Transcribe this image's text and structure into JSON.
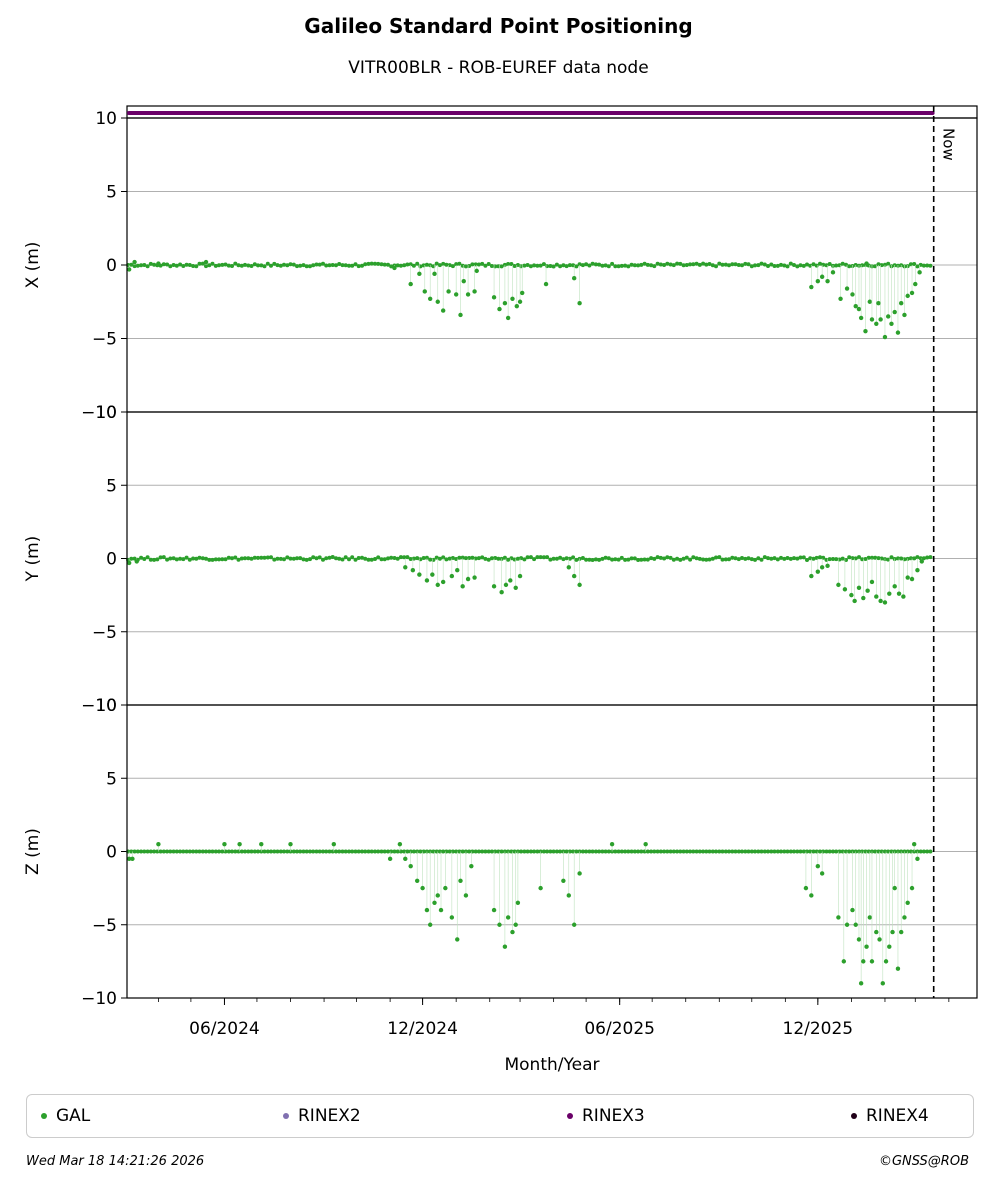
{
  "header": {
    "title": "Galileo Standard Point Positioning",
    "subtitle": "VITR00BLR - ROB-EUREF data node"
  },
  "legend": [
    {
      "label": "GAL",
      "color": "#2ca02c"
    },
    {
      "label": "RINEX2",
      "color": "#8070b0"
    },
    {
      "label": "RINEX3",
      "color": "#6a0068"
    },
    {
      "label": "RINEX4",
      "color": "#200018"
    }
  ],
  "footer": {
    "timestamp": "Wed Mar 18 14:21:26 2026",
    "credit": "©GNSS@ROB"
  },
  "chart_data": {
    "type": "scatter",
    "xlabel": "Month/Year",
    "x_range": [
      "2024-03-03",
      "2026-04-27"
    ],
    "x_ticks": [
      "2024-06-01",
      "2024-12-01",
      "2025-06-01",
      "2025-12-01"
    ],
    "x_tick_labels": [
      "06/2024",
      "12/2024",
      "06/2025",
      "12/2025"
    ],
    "now_marker": {
      "date": "2026-03-18",
      "label": "Now"
    },
    "rinex3_bar": {
      "start": "2024-03-03",
      "end": "2026-03-17",
      "color": "#6a0068"
    },
    "grid": "horizontal",
    "panels": [
      {
        "ylabel": "X (m)",
        "ylim": [
          -10,
          10
        ],
        "yticks": [
          -10,
          -5,
          0,
          5,
          10
        ],
        "ytick_labels": [
          "−10",
          "−5",
          "0",
          "5",
          "10"
        ],
        "series": [
          {
            "name": "GAL",
            "color": "#2ca02c",
            "baseline_noise": 0.1,
            "points": [
              [
                "2024-03-05",
                -0.3
              ],
              [
                "2024-03-10",
                0.2
              ],
              [
                "2024-04-01",
                0.1
              ],
              [
                "2024-05-15",
                0.2
              ],
              [
                "2024-11-05",
                -0.2
              ],
              [
                "2024-11-20",
                -1.3
              ],
              [
                "2024-11-28",
                -0.6
              ],
              [
                "2024-12-03",
                -1.8
              ],
              [
                "2024-12-08",
                -2.3
              ],
              [
                "2024-12-12",
                -0.6
              ],
              [
                "2024-12-15",
                -2.5
              ],
              [
                "2024-12-20",
                -3.1
              ],
              [
                "2024-12-25",
                -1.8
              ],
              [
                "2025-01-01",
                -2.0
              ],
              [
                "2025-01-05",
                -3.4
              ],
              [
                "2025-01-08",
                -1.1
              ],
              [
                "2025-01-12",
                -2.0
              ],
              [
                "2025-01-18",
                -1.8
              ],
              [
                "2025-01-20",
                -0.4
              ],
              [
                "2025-02-05",
                -2.2
              ],
              [
                "2025-02-10",
                -3.0
              ],
              [
                "2025-02-15",
                -2.6
              ],
              [
                "2025-02-18",
                -3.6
              ],
              [
                "2025-02-22",
                -2.3
              ],
              [
                "2025-02-26",
                -2.8
              ],
              [
                "2025-03-01",
                -2.5
              ],
              [
                "2025-03-03",
                -1.9
              ],
              [
                "2025-03-25",
                -1.3
              ],
              [
                "2025-04-20",
                -0.9
              ],
              [
                "2025-04-25",
                -2.6
              ],
              [
                "2025-11-25",
                -1.5
              ],
              [
                "2025-12-01",
                -1.1
              ],
              [
                "2025-12-05",
                -0.8
              ],
              [
                "2025-12-10",
                -1.1
              ],
              [
                "2025-12-15",
                -0.5
              ],
              [
                "2025-12-22",
                -2.3
              ],
              [
                "2025-12-28",
                -1.6
              ],
              [
                "2026-01-02",
                -2.0
              ],
              [
                "2026-01-05",
                -2.8
              ],
              [
                "2026-01-08",
                -3.0
              ],
              [
                "2026-01-10",
                -3.6
              ],
              [
                "2026-01-14",
                -4.5
              ],
              [
                "2026-01-18",
                -2.5
              ],
              [
                "2026-01-20",
                -3.7
              ],
              [
                "2026-01-24",
                -4.0
              ],
              [
                "2026-01-26",
                -2.6
              ],
              [
                "2026-01-28",
                -3.7
              ],
              [
                "2026-02-01",
                -4.9
              ],
              [
                "2026-02-04",
                -3.5
              ],
              [
                "2026-02-07",
                -4.0
              ],
              [
                "2026-02-10",
                -3.2
              ],
              [
                "2026-02-13",
                -4.6
              ],
              [
                "2026-02-16",
                -2.6
              ],
              [
                "2026-02-19",
                -3.4
              ],
              [
                "2026-02-22",
                -2.1
              ],
              [
                "2026-02-26",
                -1.9
              ],
              [
                "2026-03-01",
                -1.3
              ],
              [
                "2026-03-05",
                -0.5
              ],
              [
                "2026-01-15",
                0.1
              ]
            ]
          }
        ]
      },
      {
        "ylabel": "Y (m)",
        "ylim": [
          -10,
          10
        ],
        "yticks": [
          -10,
          -5,
          0,
          5,
          10
        ],
        "ytick_labels": [
          "−10",
          "−5",
          "0",
          "5",
          "10"
        ],
        "series": [
          {
            "name": "GAL",
            "color": "#2ca02c",
            "baseline_noise": 0.1,
            "points": [
              [
                "2024-03-05",
                -0.3
              ],
              [
                "2024-03-12",
                -0.2
              ],
              [
                "2024-11-15",
                -0.6
              ],
              [
                "2024-11-22",
                -0.8
              ],
              [
                "2024-11-28",
                -1.1
              ],
              [
                "2024-12-05",
                -1.5
              ],
              [
                "2024-12-10",
                -1.1
              ],
              [
                "2024-12-15",
                -1.8
              ],
              [
                "2024-12-20",
                -1.6
              ],
              [
                "2024-12-28",
                -1.2
              ],
              [
                "2025-01-02",
                -0.8
              ],
              [
                "2025-01-07",
                -1.9
              ],
              [
                "2025-01-12",
                -1.4
              ],
              [
                "2025-01-18",
                -1.3
              ],
              [
                "2025-02-05",
                -1.9
              ],
              [
                "2025-02-12",
                -2.3
              ],
              [
                "2025-02-16",
                -1.8
              ],
              [
                "2025-02-20",
                -1.5
              ],
              [
                "2025-02-25",
                -2.0
              ],
              [
                "2025-03-01",
                -1.2
              ],
              [
                "2025-04-15",
                -0.6
              ],
              [
                "2025-04-20",
                -1.2
              ],
              [
                "2025-04-25",
                -1.8
              ],
              [
                "2025-11-25",
                -1.2
              ],
              [
                "2025-12-01",
                -0.9
              ],
              [
                "2025-12-05",
                -0.6
              ],
              [
                "2025-12-10",
                -0.5
              ],
              [
                "2025-12-20",
                -1.8
              ],
              [
                "2025-12-26",
                -2.1
              ],
              [
                "2026-01-01",
                -2.5
              ],
              [
                "2026-01-04",
                -2.9
              ],
              [
                "2026-01-08",
                -2.0
              ],
              [
                "2026-01-12",
                -2.7
              ],
              [
                "2026-01-16",
                -2.2
              ],
              [
                "2026-01-20",
                -1.6
              ],
              [
                "2026-01-24",
                -2.6
              ],
              [
                "2026-01-28",
                -2.9
              ],
              [
                "2026-02-01",
                -3.0
              ],
              [
                "2026-02-05",
                -2.4
              ],
              [
                "2026-02-10",
                -1.9
              ],
              [
                "2026-02-14",
                -2.4
              ],
              [
                "2026-02-18",
                -2.6
              ],
              [
                "2026-02-22",
                -1.3
              ],
              [
                "2026-02-26",
                -1.4
              ],
              [
                "2026-03-03",
                -0.8
              ],
              [
                "2026-03-07",
                -0.2
              ]
            ]
          }
        ]
      },
      {
        "ylabel": "Z (m)",
        "ylim": [
          -10,
          10
        ],
        "yticks": [
          -10,
          -5,
          0,
          5,
          10
        ],
        "ytick_labels": [
          "−10",
          "−5",
          "0",
          "5",
          "10"
        ],
        "series": [
          {
            "name": "GAL",
            "color": "#2ca02c",
            "baseline_noise": 0.0,
            "points": [
              [
                "2024-03-05",
                -0.5
              ],
              [
                "2024-03-08",
                -0.5
              ],
              [
                "2024-04-01",
                0.5
              ],
              [
                "2024-06-01",
                0.5
              ],
              [
                "2024-06-15",
                0.5
              ],
              [
                "2024-07-05",
                0.5
              ],
              [
                "2024-08-01",
                0.5
              ],
              [
                "2024-09-10",
                0.5
              ],
              [
                "2024-11-10",
                0.5
              ],
              [
                "2024-11-01",
                -0.5
              ],
              [
                "2024-11-15",
                -0.5
              ],
              [
                "2024-11-20",
                -1.0
              ],
              [
                "2024-11-26",
                -2.0
              ],
              [
                "2024-12-01",
                -2.5
              ],
              [
                "2024-12-05",
                -4.0
              ],
              [
                "2024-12-08",
                -5.0
              ],
              [
                "2024-12-12",
                -3.5
              ],
              [
                "2024-12-15",
                -3.0
              ],
              [
                "2024-12-18",
                -4.0
              ],
              [
                "2024-12-22",
                -2.5
              ],
              [
                "2024-12-28",
                -4.5
              ],
              [
                "2025-01-02",
                -6.0
              ],
              [
                "2025-01-05",
                -2.0
              ],
              [
                "2025-01-10",
                -3.0
              ],
              [
                "2025-01-15",
                -1.0
              ],
              [
                "2025-02-05",
                -4.0
              ],
              [
                "2025-02-10",
                -5.0
              ],
              [
                "2025-02-15",
                -6.5
              ],
              [
                "2025-02-18",
                -4.5
              ],
              [
                "2025-02-22",
                -5.5
              ],
              [
                "2025-02-25",
                -5.0
              ],
              [
                "2025-02-27",
                -3.5
              ],
              [
                "2025-03-20",
                -2.5
              ],
              [
                "2025-04-10",
                -2.0
              ],
              [
                "2025-04-15",
                -3.0
              ],
              [
                "2025-04-20",
                -5.0
              ],
              [
                "2025-04-25",
                -1.5
              ],
              [
                "2025-11-20",
                -2.5
              ],
              [
                "2025-11-25",
                -3.0
              ],
              [
                "2025-12-01",
                -1.0
              ],
              [
                "2025-12-05",
                -1.5
              ],
              [
                "2025-12-20",
                -4.5
              ],
              [
                "2025-12-25",
                -7.5
              ],
              [
                "2025-12-28",
                -5.0
              ],
              [
                "2026-01-02",
                -4.0
              ],
              [
                "2026-01-05",
                -5.0
              ],
              [
                "2026-01-08",
                -6.0
              ],
              [
                "2026-01-10",
                -9.0
              ],
              [
                "2026-01-12",
                -7.5
              ],
              [
                "2026-01-15",
                -6.5
              ],
              [
                "2026-01-18",
                -4.5
              ],
              [
                "2026-01-20",
                -7.5
              ],
              [
                "2026-01-24",
                -5.5
              ],
              [
                "2026-01-27",
                -6.0
              ],
              [
                "2026-01-30",
                -9.0
              ],
              [
                "2026-02-02",
                -7.5
              ],
              [
                "2026-02-05",
                -6.5
              ],
              [
                "2026-02-08",
                -5.5
              ],
              [
                "2026-02-10",
                -2.5
              ],
              [
                "2026-02-13",
                -8.0
              ],
              [
                "2026-02-16",
                -5.5
              ],
              [
                "2026-02-19",
                -4.5
              ],
              [
                "2026-02-22",
                -3.5
              ],
              [
                "2026-02-26",
                -2.5
              ],
              [
                "2026-03-03",
                -0.5
              ],
              [
                "2026-02-28",
                0.5
              ],
              [
                "2025-05-25",
                0.5
              ],
              [
                "2025-06-25",
                0.5
              ]
            ]
          }
        ]
      }
    ]
  }
}
